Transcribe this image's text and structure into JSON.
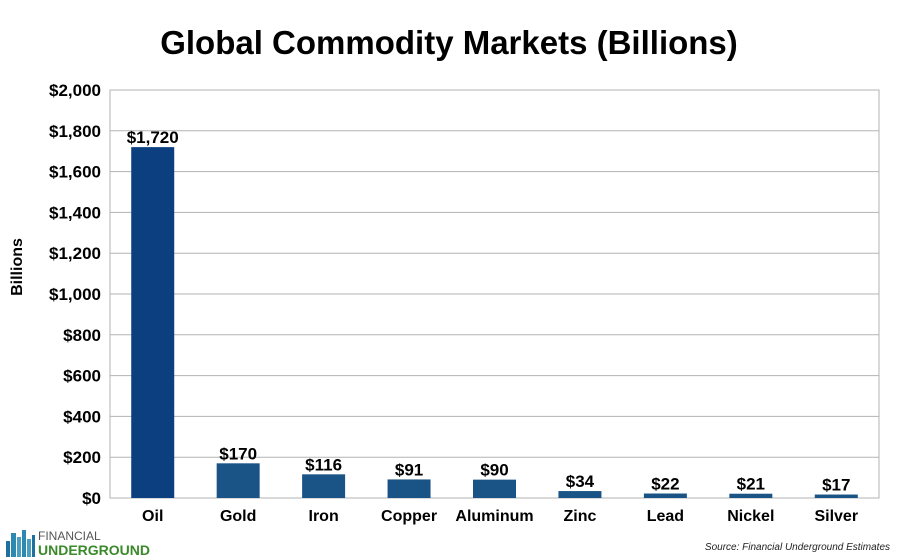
{
  "chart_data": {
    "type": "bar",
    "title": "Global Commodity Markets (Billions)",
    "ylabel": "Billions",
    "xlabel": "",
    "categories": [
      "Oil",
      "Gold",
      "Iron",
      "Copper",
      "Aluminum",
      "Zinc",
      "Lead",
      "Nickel",
      "Silver"
    ],
    "values": [
      1720,
      170,
      116,
      91,
      90,
      34,
      22,
      21,
      17
    ],
    "data_labels": [
      "$1,720",
      "$170",
      "$116",
      "$91",
      "$90",
      "$34",
      "$22",
      "$21",
      "$17"
    ],
    "ylim": [
      0,
      2000
    ],
    "yticks": [
      0,
      200,
      400,
      600,
      800,
      1000,
      1200,
      1400,
      1600,
      1800,
      2000
    ],
    "ytick_labels": [
      "$0",
      "$200",
      "$400",
      "$600",
      "$800",
      "$1,000",
      "$1,200",
      "$1,400",
      "$1,600",
      "$1,800",
      "$2,000"
    ],
    "grid": true,
    "bar_color": "#1a5486",
    "first_bar_color": "#0c3f80"
  },
  "footer": {
    "logo_line1": "FINANCIAL",
    "logo_line2": "UNDERGROUND",
    "source": "Source: Financial Underground Estimates"
  }
}
